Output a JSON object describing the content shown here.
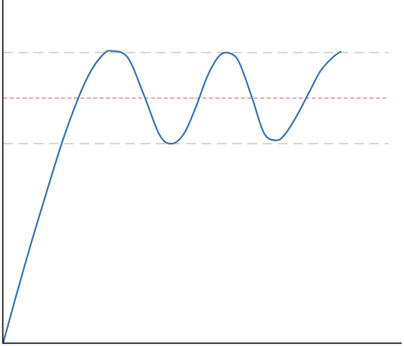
{
  "chart_data": {
    "type": "line",
    "title": "",
    "xlabel": "",
    "ylabel": "",
    "xlim": [
      0,
      1
    ],
    "ylim": [
      0,
      1
    ],
    "grid": false,
    "legend": "none",
    "series": [
      {
        "color": "#2e6fb0",
        "x": [
          0.0,
          0.031,
          0.073,
          0.115,
          0.156,
          0.198,
          0.229,
          0.26,
          0.281,
          0.323,
          0.365,
          0.406,
          0.438,
          0.469,
          0.5,
          0.531,
          0.563,
          0.594,
          0.615,
          0.646,
          0.677,
          0.708,
          0.729,
          0.76,
          0.792,
          0.823,
          0.854,
          0.875
        ],
        "y": [
          0.0,
          0.13,
          0.3,
          0.46,
          0.61,
          0.74,
          0.815,
          0.862,
          0.872,
          0.852,
          0.74,
          0.62,
          0.595,
          0.625,
          0.705,
          0.8,
          0.86,
          0.862,
          0.83,
          0.73,
          0.625,
          0.605,
          0.62,
          0.675,
          0.745,
          0.812,
          0.852,
          0.87
        ]
      }
    ],
    "reference_lines": [
      {
        "y": 0.867,
        "color": "#cccccc",
        "style": "long-dash"
      },
      {
        "y": 0.595,
        "color": "#cccccc",
        "style": "long-dash"
      },
      {
        "y": 0.731,
        "color": "#d06060",
        "style": "dash"
      }
    ]
  }
}
